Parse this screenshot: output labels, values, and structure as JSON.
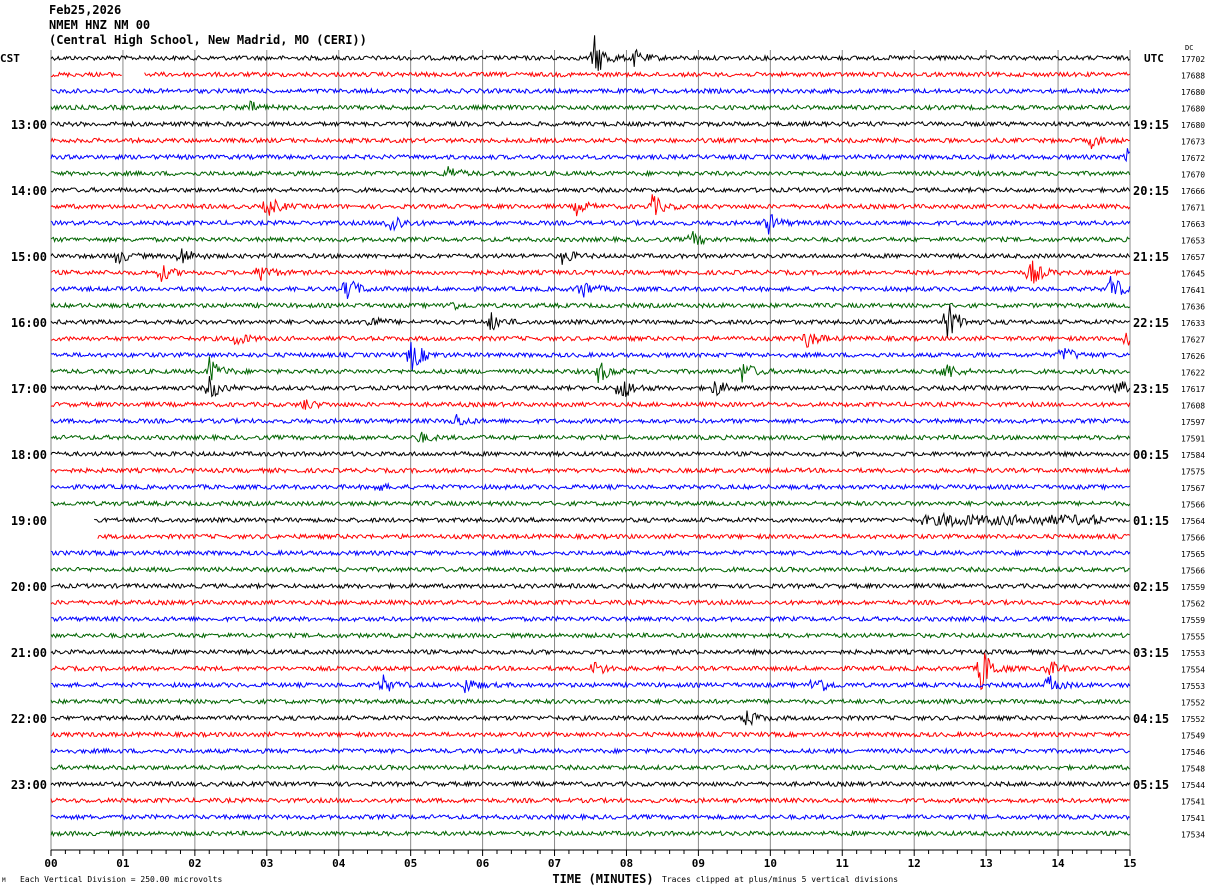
{
  "header": {
    "date": "Feb25,2026",
    "station": "NMEM HNZ NM 00",
    "location": "(Central High School, New Madrid, MO (CERI))"
  },
  "chart_data": {
    "type": "line",
    "title": "NMEM HNZ NM 00",
    "left_timezone": "CST",
    "right_timezone": "UTC",
    "dc_label": "DC",
    "xlabel": "TIME (MINUTES)",
    "xlim": [
      0,
      15
    ],
    "x_tick_labels": [
      "00",
      "01",
      "02",
      "03",
      "04",
      "05",
      "06",
      "07",
      "08",
      "09",
      "10",
      "11",
      "12",
      "13",
      "14",
      "15"
    ],
    "left_hour_labels": [
      {
        "trace": 4,
        "label": "13:00"
      },
      {
        "trace": 8,
        "label": "14:00"
      },
      {
        "trace": 12,
        "label": "15:00"
      },
      {
        "trace": 16,
        "label": "16:00"
      },
      {
        "trace": 20,
        "label": "17:00"
      },
      {
        "trace": 24,
        "label": "18:00"
      },
      {
        "trace": 28,
        "label": "19:00"
      },
      {
        "trace": 32,
        "label": "20:00"
      },
      {
        "trace": 36,
        "label": "21:00"
      },
      {
        "trace": 40,
        "label": "22:00"
      },
      {
        "trace": 44,
        "label": "23:00"
      }
    ],
    "right_hour_labels": [
      {
        "trace": 4,
        "label": "19:15"
      },
      {
        "trace": 8,
        "label": "20:15"
      },
      {
        "trace": 12,
        "label": "21:15"
      },
      {
        "trace": 16,
        "label": "22:15"
      },
      {
        "trace": 20,
        "label": "23:15"
      },
      {
        "trace": 24,
        "label": "00:15"
      },
      {
        "trace": 28,
        "label": "01:15"
      },
      {
        "trace": 32,
        "label": "02:15"
      },
      {
        "trace": 36,
        "label": "03:15"
      },
      {
        "trace": 40,
        "label": "04:15"
      },
      {
        "trace": 44,
        "label": "05:15"
      }
    ],
    "dc_offsets": [
      "17702",
      "17688",
      "17680",
      "17680",
      "17680",
      "17673",
      "17672",
      "17670",
      "17666",
      "17671",
      "17663",
      "17653",
      "17657",
      "17645",
      "17641",
      "17636",
      "17633",
      "17627",
      "17626",
      "17622",
      "17617",
      "17608",
      "17597",
      "17591",
      "17584",
      "17575",
      "17567",
      "17566",
      "17564",
      "17566",
      "17565",
      "17566",
      "17559",
      "17562",
      "17559",
      "17555",
      "17553",
      "17554",
      "17553",
      "17552",
      "17552",
      "17549",
      "17546",
      "17548",
      "17544",
      "17541",
      "17541",
      "17534"
    ],
    "trace_colors": [
      "#000000",
      "#ff0000",
      "#0000ff",
      "#006400"
    ],
    "events": [
      [
        0,
        7.55,
        22
      ],
      [
        0,
        8.1,
        8
      ],
      [
        3,
        2.75,
        6
      ],
      [
        5,
        14.45,
        7
      ],
      [
        6,
        14.95,
        9
      ],
      [
        7,
        5.5,
        8
      ],
      [
        9,
        3.0,
        12
      ],
      [
        9,
        7.3,
        8
      ],
      [
        9,
        8.35,
        12
      ],
      [
        10,
        4.7,
        14
      ],
      [
        10,
        9.95,
        12
      ],
      [
        11,
        8.9,
        8
      ],
      [
        12,
        1.8,
        10
      ],
      [
        12,
        0.9,
        8
      ],
      [
        12,
        7.1,
        8
      ],
      [
        13,
        1.5,
        10
      ],
      [
        13,
        2.9,
        10
      ],
      [
        13,
        13.6,
        16
      ],
      [
        14,
        4.1,
        14
      ],
      [
        14,
        7.35,
        12
      ],
      [
        14,
        14.7,
        18
      ],
      [
        15,
        5.5,
        6
      ],
      [
        16,
        6.1,
        10
      ],
      [
        16,
        4.4,
        8
      ],
      [
        16,
        12.45,
        22
      ],
      [
        17,
        2.55,
        8
      ],
      [
        17,
        10.5,
        10
      ],
      [
        17,
        14.95,
        14
      ],
      [
        18,
        5.0,
        18
      ],
      [
        18,
        14.05,
        10
      ],
      [
        19,
        2.2,
        14
      ],
      [
        19,
        7.6,
        12
      ],
      [
        19,
        9.6,
        12
      ],
      [
        19,
        12.4,
        12
      ],
      [
        20,
        7.9,
        16
      ],
      [
        20,
        2.2,
        12
      ],
      [
        20,
        9.2,
        10
      ],
      [
        20,
        14.8,
        10
      ],
      [
        21,
        3.5,
        6
      ],
      [
        22,
        5.6,
        8
      ],
      [
        23,
        5.1,
        6
      ],
      [
        26,
        4.5,
        4
      ],
      [
        28,
        12.45,
        4
      ],
      [
        37,
        7.55,
        8
      ],
      [
        37,
        12.9,
        30
      ],
      [
        37,
        13.85,
        10
      ],
      [
        38,
        4.6,
        10
      ],
      [
        38,
        5.75,
        8
      ],
      [
        38,
        10.6,
        14
      ],
      [
        38,
        13.85,
        12
      ],
      [
        40,
        9.65,
        10
      ]
    ],
    "gaps": [
      [
        1,
        1.0,
        1.3
      ],
      [
        28,
        0,
        0.6
      ],
      [
        29,
        0,
        0.65
      ]
    ],
    "noisy_spans": [
      [
        28,
        12.1,
        14.6
      ]
    ]
  },
  "footer": {
    "scale": "Each Vertical Division =  250.00 microvolts",
    "clip": "Traces clipped at plus/minus 5 vertical divisions",
    "mark": "M"
  }
}
